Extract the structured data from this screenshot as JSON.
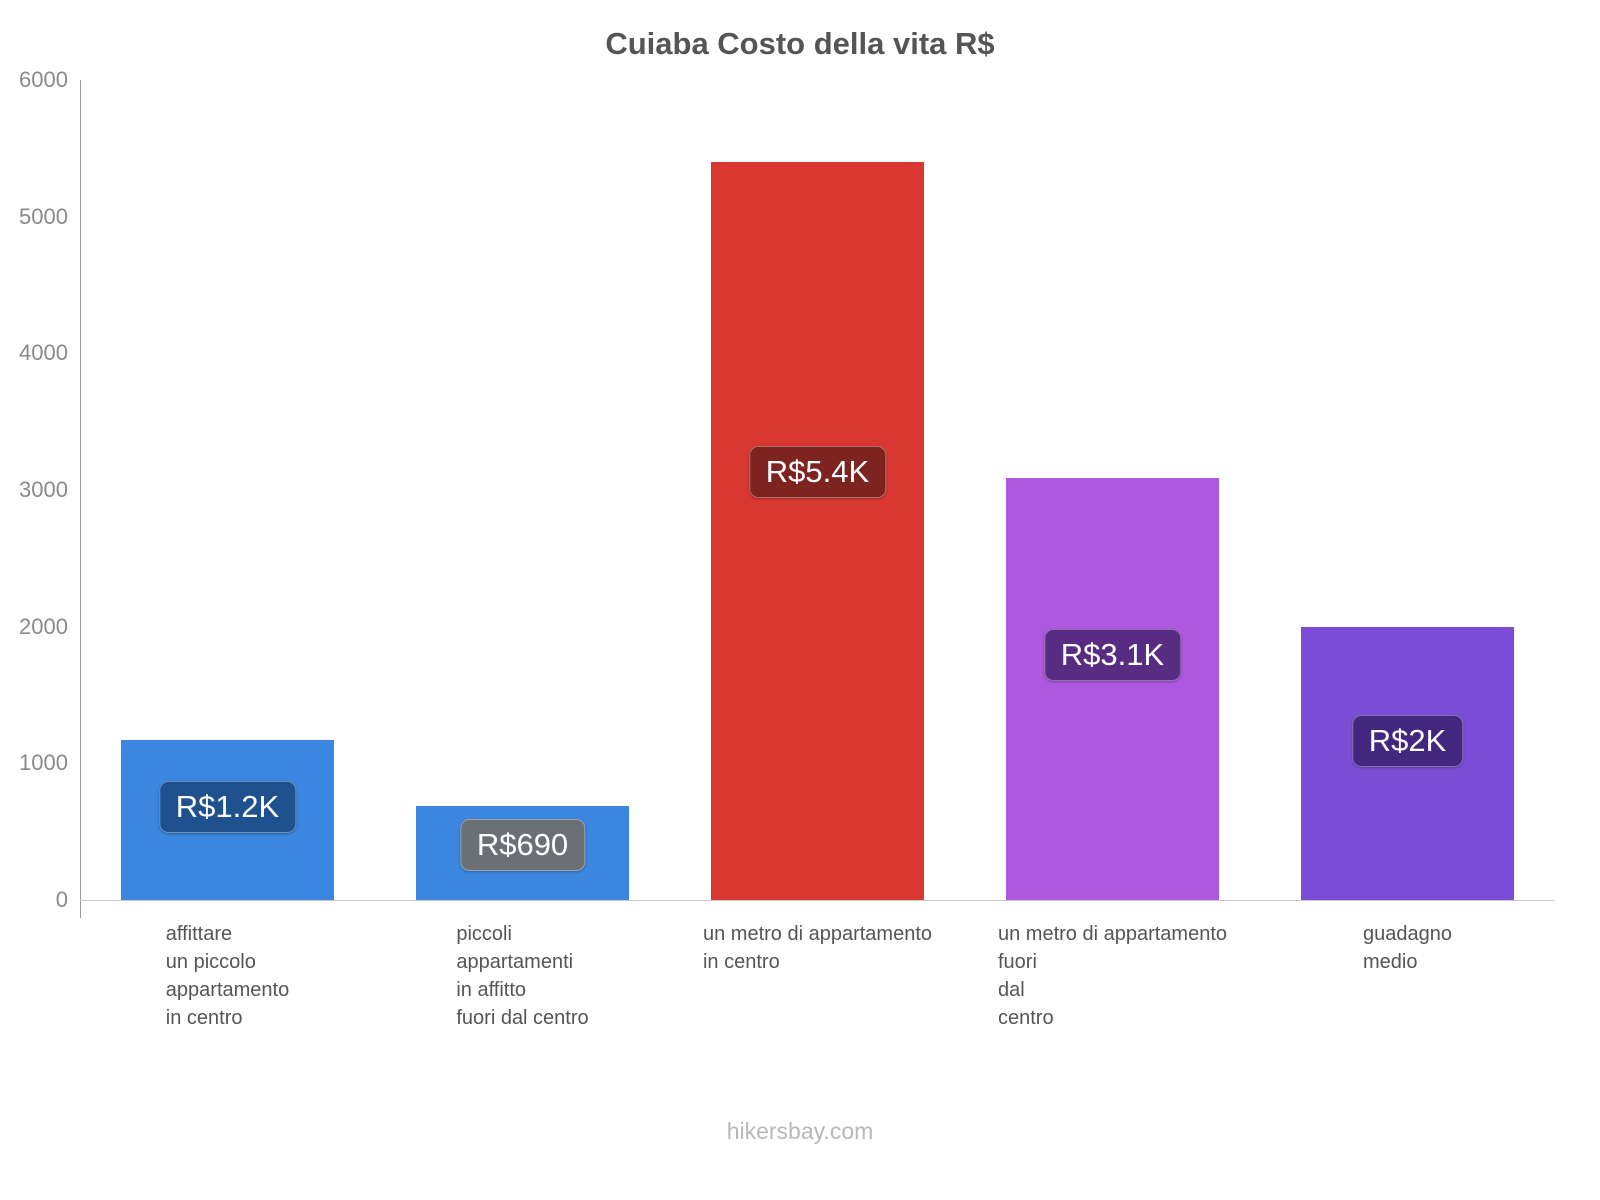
{
  "footer": "hikersbay.com",
  "chart_data": {
    "type": "bar",
    "title": "Cuiaba Costo della vita R$",
    "xlabel": "",
    "ylabel": "",
    "ylim": [
      0,
      6000
    ],
    "y_ticks": [
      0,
      1000,
      2000,
      3000,
      4000,
      5000,
      6000
    ],
    "grid": false,
    "legend": false,
    "categories": [
      [
        "affittare",
        "un piccolo",
        "appartamento",
        "in centro"
      ],
      [
        "piccoli",
        "appartamenti",
        "in affitto",
        "fuori dal centro"
      ],
      [
        "un metro di appartamento",
        "in centro"
      ],
      [
        "un metro di appartamento",
        "fuori",
        "dal",
        "centro"
      ],
      [
        "guadagno",
        "medio"
      ]
    ],
    "values": [
      1170,
      690,
      5400,
      3090,
      2000
    ],
    "value_labels": [
      "R$1.2K",
      "R$690",
      "R$5.4K",
      "R$3.1K",
      "R$2K"
    ],
    "bar_colors": [
      "#3b86de",
      "#3b86de",
      "#d93831",
      "#ae58df",
      "#7b4dd6"
    ],
    "label_bg_colors": [
      "#20518f",
      "#6a7076",
      "#7d2421",
      "#572c82",
      "#43267e"
    ]
  }
}
